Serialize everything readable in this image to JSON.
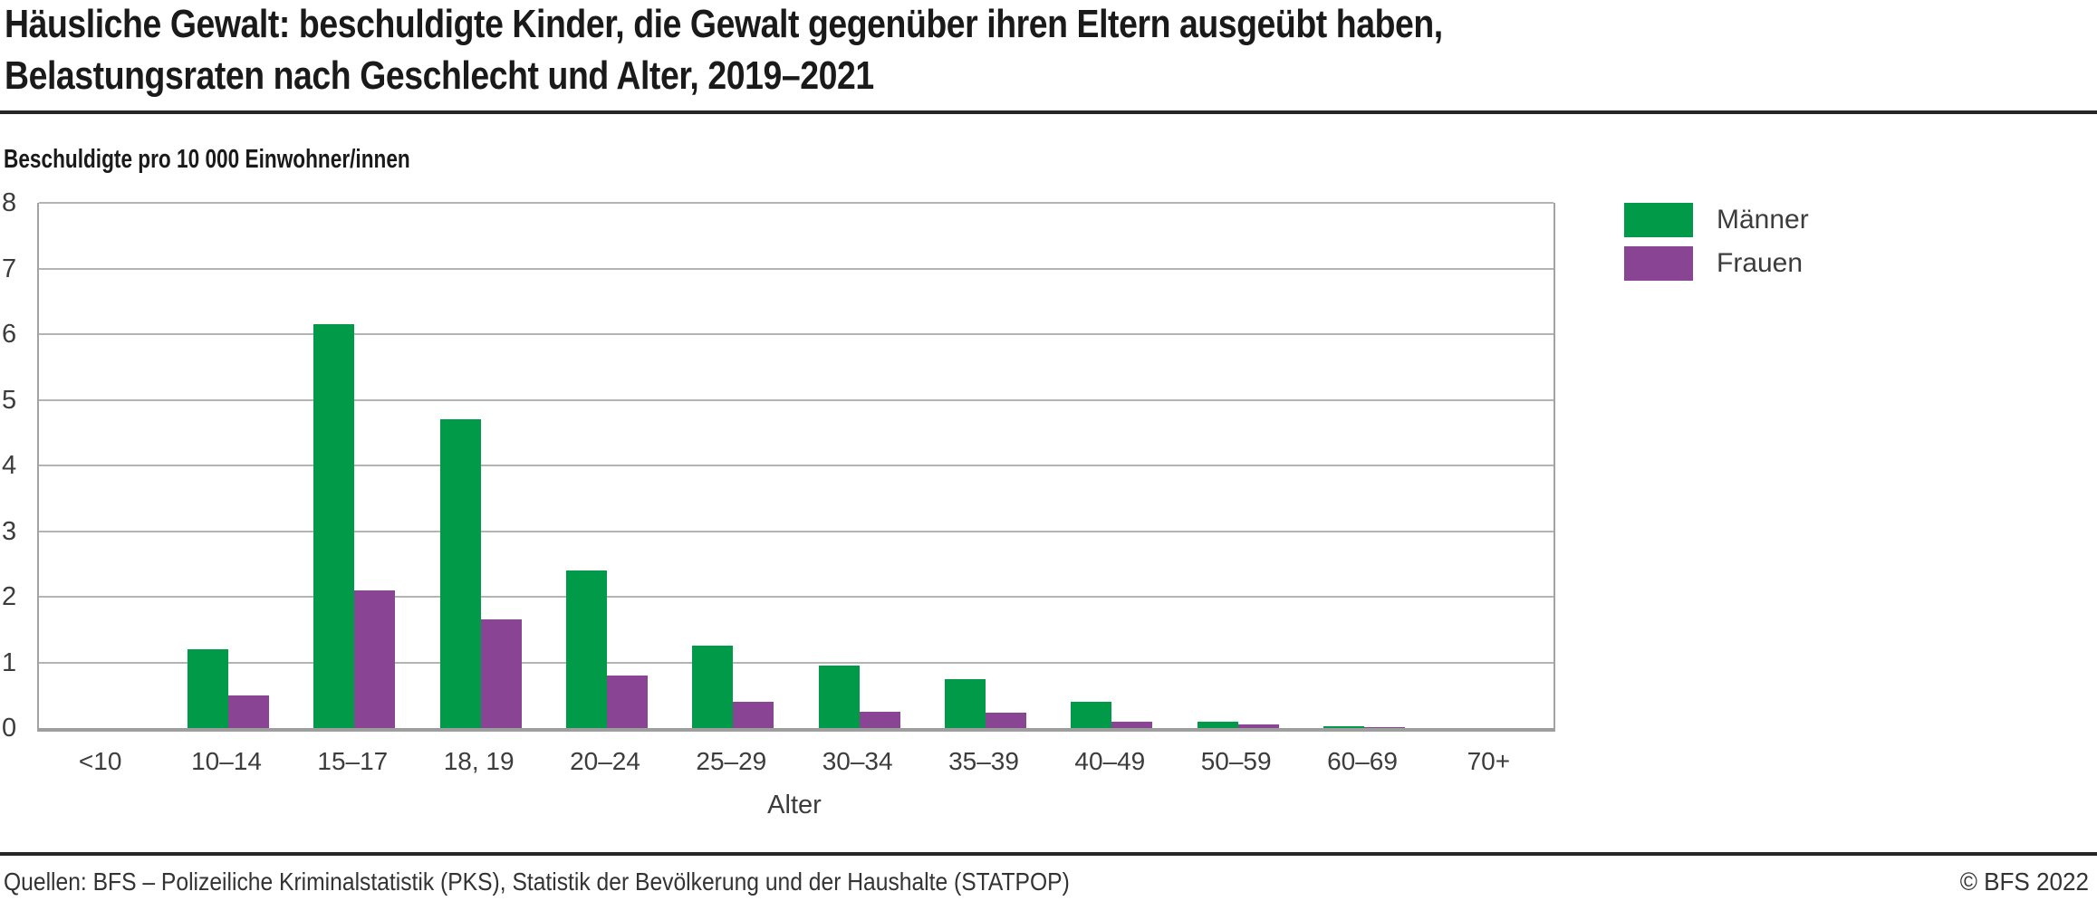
{
  "header": {
    "title_line1": "Häusliche Gewalt: beschuldigte Kinder, die Gewalt gegenüber ihren Eltern ausgeübt haben,",
    "title_line2": "Belastungsraten nach Geschlecht und Alter, 2019–2021"
  },
  "chart_data": {
    "type": "bar",
    "title": "Häusliche Gewalt: beschuldigte Kinder, die Gewalt gegenüber ihren Eltern ausgeübt haben, Belastungsraten nach Geschlecht und Alter, 2019–2021",
    "unit_label": "Beschuldigte pro 10 000 Einwohner/innen",
    "xlabel": "Alter",
    "ylabel": "Beschuldigte pro 10 000 Einwohner/innen",
    "ylim": [
      0,
      8
    ],
    "yticks": [
      0,
      1,
      2,
      3,
      4,
      5,
      6,
      7,
      8
    ],
    "grid": true,
    "legend_position": "outside-top-right",
    "categories": [
      "<10",
      "10–14",
      "15–17",
      "18, 19",
      "20–24",
      "25–29",
      "30–34",
      "35–39",
      "40–49",
      "50–59",
      "60–69",
      "70+"
    ],
    "series": [
      {
        "name": "Männer",
        "color": "#009A49",
        "values": [
          0,
          1.2,
          6.15,
          4.7,
          2.4,
          1.25,
          0.95,
          0.75,
          0.4,
          0.1,
          0.03,
          0
        ]
      },
      {
        "name": "Frauen",
        "color": "#8A4494",
        "values": [
          0,
          0.5,
          2.1,
          1.65,
          0.8,
          0.4,
          0.25,
          0.23,
          0.1,
          0.05,
          0.02,
          0
        ]
      }
    ]
  },
  "footer": {
    "sources": "Quellen: BFS – Polizeiliche Kriminalstatistik (PKS), Statistik der Bevölkerung und der Haushalte (STATPOP)",
    "copyright": "© BFS 2022"
  },
  "colors": {
    "maenner_green": "#009A49",
    "frauen_purple": "#8A4494",
    "gridline_gray": "#b4b4b4",
    "axis_gray": "#9e9e9e",
    "rule_dark": "#262626",
    "text_dark": "#1a1a1a",
    "tick_text_gray": "#3c3c3c"
  }
}
